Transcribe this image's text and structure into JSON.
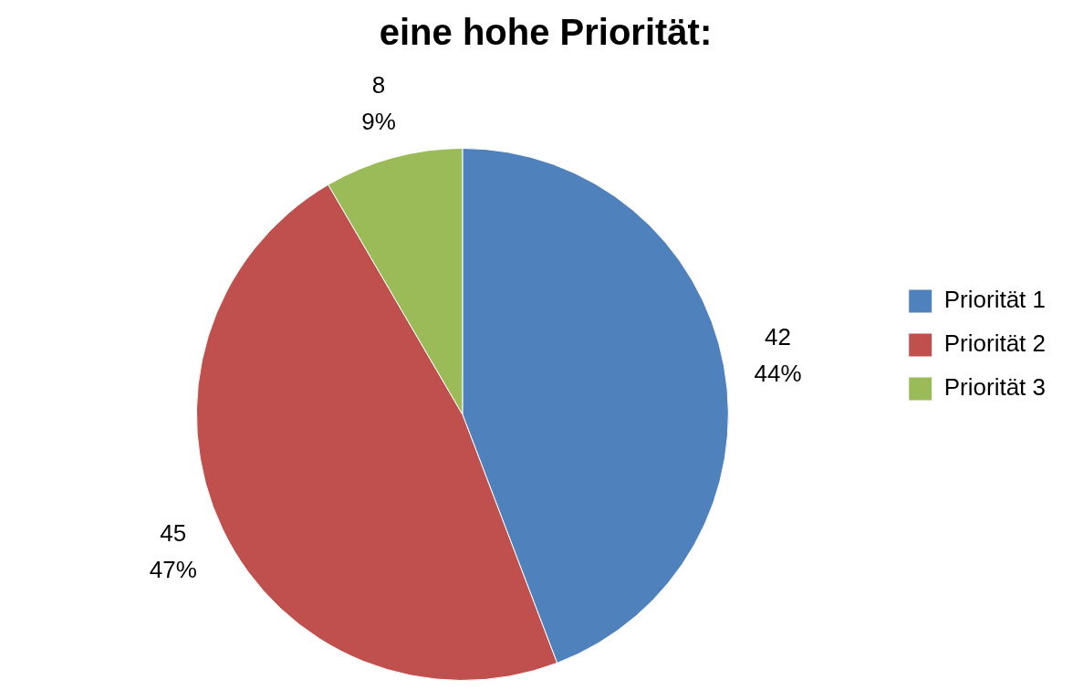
{
  "chart_data": {
    "type": "pie",
    "title": "eine hohe Priorität:",
    "categories": [
      "Priorität 1",
      "Priorität 2",
      "Priorität 3"
    ],
    "values": [
      42,
      45,
      8
    ],
    "colors": [
      "#4f81bd",
      "#c0504d",
      "#9bbb59"
    ],
    "value_labels": [
      "42\n44%",
      "45\n47%",
      "8\n9%"
    ],
    "legend": "right"
  }
}
